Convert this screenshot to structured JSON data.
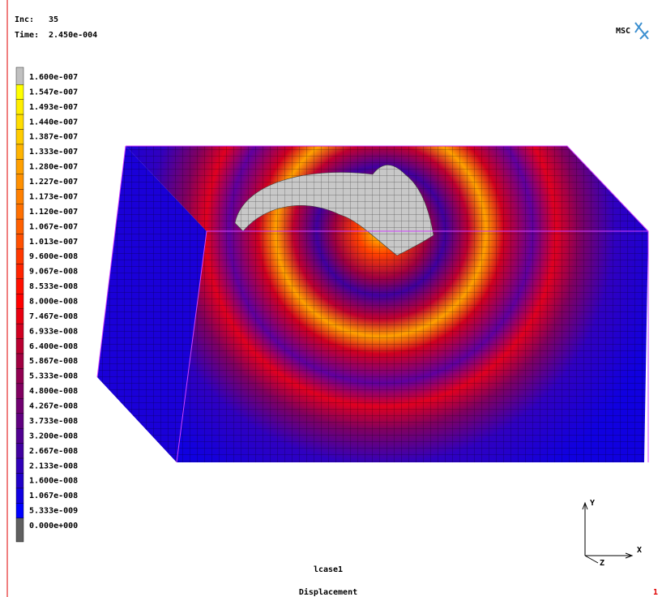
{
  "header": {
    "inc_label": "Inc:",
    "inc_value": "35",
    "time_label": "Time:",
    "time_value": "2.450e-004",
    "logo": "MSC"
  },
  "legend": [
    {
      "label": "1.600e-007",
      "color": "#c0c0c0"
    },
    {
      "label": "1.547e-007",
      "color": "#ffff00"
    },
    {
      "label": "1.493e-007",
      "color": "#ffee00"
    },
    {
      "label": "1.440e-007",
      "color": "#ffdd00"
    },
    {
      "label": "1.387e-007",
      "color": "#ffcc00"
    },
    {
      "label": "1.333e-007",
      "color": "#ffb400"
    },
    {
      "label": "1.280e-007",
      "color": "#ffa000"
    },
    {
      "label": "1.227e-007",
      "color": "#ff9000"
    },
    {
      "label": "1.173e-007",
      "color": "#ff8000"
    },
    {
      "label": "1.120e-007",
      "color": "#ff7000"
    },
    {
      "label": "1.067e-007",
      "color": "#ff6000"
    },
    {
      "label": "1.013e-007",
      "color": "#ff5000"
    },
    {
      "label": "9.600e-008",
      "color": "#ff3800"
    },
    {
      "label": "9.067e-008",
      "color": "#ff2400"
    },
    {
      "label": "8.533e-008",
      "color": "#ff1000"
    },
    {
      "label": "8.000e-008",
      "color": "#ff0000"
    },
    {
      "label": "7.467e-008",
      "color": "#e80010"
    },
    {
      "label": "6.933e-008",
      "color": "#d00020"
    },
    {
      "label": "6.400e-008",
      "color": "#b80030"
    },
    {
      "label": "5.867e-008",
      "color": "#a00040"
    },
    {
      "label": "5.333e-008",
      "color": "#900050"
    },
    {
      "label": "4.800e-008",
      "color": "#800060"
    },
    {
      "label": "4.267e-008",
      "color": "#700070"
    },
    {
      "label": "3.733e-008",
      "color": "#600080"
    },
    {
      "label": "3.200e-008",
      "color": "#500090"
    },
    {
      "label": "2.667e-008",
      "color": "#4000a0"
    },
    {
      "label": "2.133e-008",
      "color": "#3000b8"
    },
    {
      "label": "1.600e-008",
      "color": "#2000c8"
    },
    {
      "label": "1.067e-008",
      "color": "#1000e0"
    },
    {
      "label": "5.333e-009",
      "color": "#0000ff"
    },
    {
      "label": "0.000e+000",
      "color": "#606060"
    }
  ],
  "axes": {
    "y": "Y",
    "x": "X",
    "z": "Z"
  },
  "footer": {
    "loadcase": "lcase1",
    "quantity": "Displacement",
    "index": "1"
  }
}
